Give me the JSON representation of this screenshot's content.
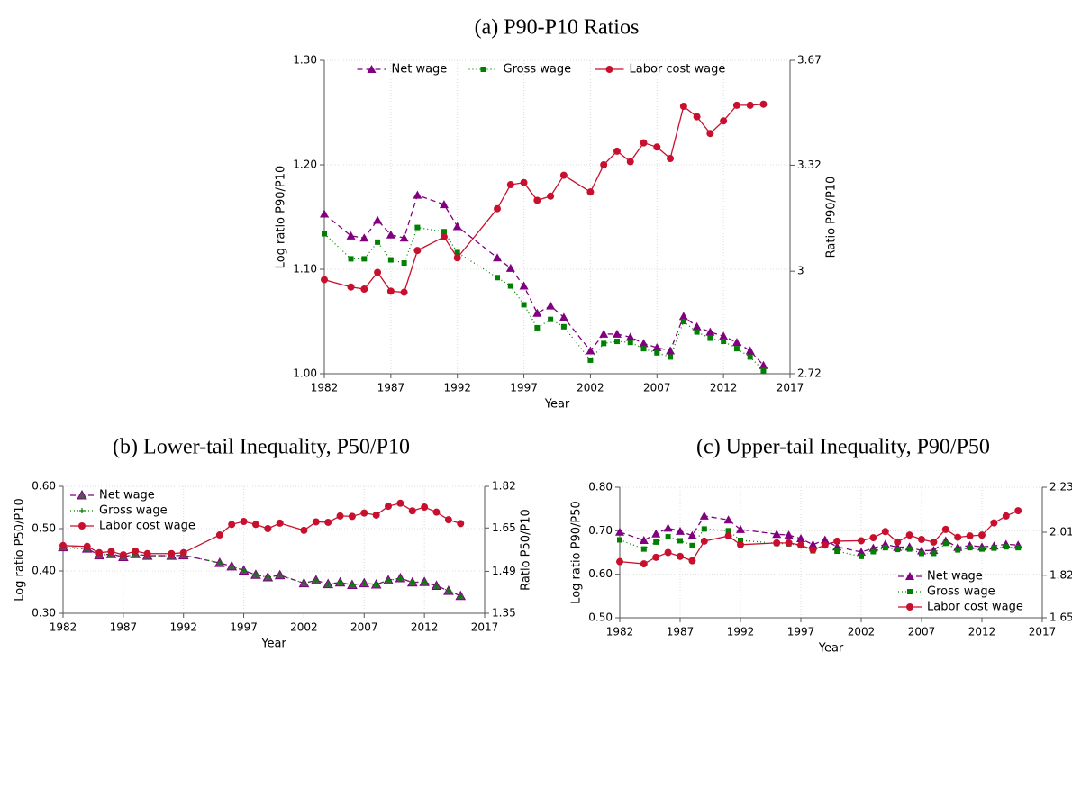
{
  "chart_data": [
    {
      "type": "line",
      "title": "(a) P90-P10 Ratios",
      "xlabel": "Year",
      "ylabel": "Log ratio P90/P10",
      "y2label": "Ratio P90/P10",
      "x": [
        1982,
        1984,
        1985,
        1986,
        1987,
        1988,
        1989,
        1991,
        1992,
        1995,
        1996,
        1997,
        1998,
        1999,
        2000,
        2002,
        2003,
        2004,
        2005,
        2006,
        2007,
        2008,
        2009,
        2010,
        2011,
        2012,
        2013,
        2014,
        2015
      ],
      "xlim": [
        1982,
        2017
      ],
      "xticks": [
        1982,
        1987,
        1992,
        1997,
        2002,
        2007,
        2012,
        2017
      ],
      "ylim": [
        1.0,
        1.3
      ],
      "yticks": [
        {
          "value": 1.0,
          "label": "1.00"
        },
        {
          "value": 1.1,
          "label": "1.10"
        },
        {
          "value": 1.2,
          "label": "1.20"
        },
        {
          "value": 1.3,
          "label": "1.30"
        }
      ],
      "y2lim": [
        2.72,
        3.67
      ],
      "y2ticks": [
        2.72,
        3,
        3.32,
        3.67
      ],
      "y2scale": "log",
      "grid": true,
      "legend": "top",
      "series": [
        {
          "name": "Net wage",
          "color": "#800080",
          "marker": "triangle",
          "line_style": "dashed",
          "values": [
            1.153,
            1.132,
            1.13,
            1.147,
            1.133,
            1.13,
            1.171,
            1.162,
            1.141,
            1.111,
            1.101,
            1.084,
            1.058,
            1.065,
            1.054,
            1.022,
            1.038,
            1.038,
            1.035,
            1.029,
            1.025,
            1.022,
            1.055,
            1.045,
            1.04,
            1.036,
            1.03,
            1.022,
            1.008
          ]
        },
        {
          "name": "Gross wage",
          "color": "#008000",
          "marker": "square",
          "line_style": "dotted",
          "values": [
            1.134,
            1.11,
            1.11,
            1.126,
            1.109,
            1.106,
            1.14,
            1.136,
            1.116,
            1.092,
            1.084,
            1.066,
            1.044,
            1.052,
            1.045,
            1.013,
            1.029,
            1.031,
            1.03,
            1.024,
            1.02,
            1.016,
            1.05,
            1.04,
            1.034,
            1.031,
            1.024,
            1.016,
            1.003
          ]
        },
        {
          "name": "Labor cost wage",
          "color": "#c8102e",
          "marker": "circle",
          "line_style": "solid",
          "values": [
            1.09,
            1.083,
            1.081,
            1.097,
            1.079,
            1.078,
            1.118,
            1.131,
            1.111,
            1.158,
            1.181,
            1.183,
            1.166,
            1.17,
            1.19,
            1.174,
            1.2,
            1.213,
            1.203,
            1.221,
            1.217,
            1.206,
            1.256,
            1.246,
            1.23,
            1.242,
            1.257,
            1.257,
            1.258
          ]
        }
      ]
    },
    {
      "type": "line",
      "title": "(b) Lower-tail Inequality, P50/P10",
      "xlabel": "Year",
      "ylabel": "Log ratio P50/P10",
      "y2label": "Ratio P50/P10",
      "x": [
        1982,
        1984,
        1985,
        1986,
        1987,
        1988,
        1989,
        1991,
        1992,
        1995,
        1996,
        1997,
        1998,
        1999,
        2000,
        2002,
        2003,
        2004,
        2005,
        2006,
        2007,
        2008,
        2009,
        2010,
        2011,
        2012,
        2013,
        2014,
        2015
      ],
      "xlim": [
        1982,
        2017
      ],
      "xticks": [
        1982,
        1987,
        1992,
        1997,
        2002,
        2007,
        2012,
        2017
      ],
      "ylim": [
        0.3,
        0.6
      ],
      "yticks": [
        {
          "value": 0.3,
          "label": "0.30"
        },
        {
          "value": 0.4,
          "label": "0.40"
        },
        {
          "value": 0.5,
          "label": "0.50"
        },
        {
          "value": 0.6,
          "label": "0.60"
        }
      ],
      "y2lim": [
        1.35,
        1.82
      ],
      "y2ticks": [
        1.35,
        1.49,
        1.65,
        1.82
      ],
      "y2scale": "log",
      "grid": true,
      "legend": "top-left",
      "series": [
        {
          "name": "Net wage",
          "color": "#800080",
          "marker": "hollow-triangle",
          "line_style": "dashed",
          "values": [
            0.456,
            0.453,
            0.437,
            0.44,
            0.433,
            0.44,
            0.436,
            0.436,
            0.437,
            0.419,
            0.411,
            0.401,
            0.391,
            0.385,
            0.39,
            0.371,
            0.378,
            0.369,
            0.373,
            0.367,
            0.371,
            0.368,
            0.378,
            0.383,
            0.373,
            0.374,
            0.365,
            0.353,
            0.341
          ]
        },
        {
          "name": "Gross wage",
          "color": "#008000",
          "marker": "plus",
          "line_style": "dotted",
          "values": [
            0.455,
            0.452,
            0.437,
            0.44,
            0.433,
            0.439,
            0.436,
            0.436,
            0.437,
            0.419,
            0.411,
            0.401,
            0.391,
            0.385,
            0.39,
            0.371,
            0.377,
            0.369,
            0.373,
            0.367,
            0.371,
            0.368,
            0.378,
            0.382,
            0.373,
            0.374,
            0.365,
            0.353,
            0.341
          ]
        },
        {
          "name": "Labor cost wage",
          "color": "#c8102e",
          "marker": "circle",
          "line_style": "solid",
          "values": [
            0.46,
            0.458,
            0.443,
            0.446,
            0.438,
            0.447,
            0.441,
            0.441,
            0.443,
            0.485,
            0.51,
            0.517,
            0.51,
            0.5,
            0.513,
            0.496,
            0.516,
            0.515,
            0.53,
            0.529,
            0.537,
            0.532,
            0.553,
            0.56,
            0.542,
            0.551,
            0.539,
            0.521,
            0.512
          ]
        }
      ]
    },
    {
      "type": "line",
      "title": "(c) Upper-tail Inequality, P90/P50",
      "xlabel": "Year",
      "ylabel": "Log ratio P90/P50",
      "y2label": "Ratio P90/P50",
      "x": [
        1982,
        1984,
        1985,
        1986,
        1987,
        1988,
        1989,
        1991,
        1992,
        1995,
        1996,
        1997,
        1998,
        1999,
        2000,
        2002,
        2003,
        2004,
        2005,
        2006,
        2007,
        2008,
        2009,
        2010,
        2011,
        2012,
        2013,
        2014,
        2015
      ],
      "xlim": [
        1982,
        2017
      ],
      "xticks": [
        1982,
        1987,
        1992,
        1997,
        2002,
        2007,
        2012,
        2017
      ],
      "ylim": [
        0.5,
        0.8
      ],
      "yticks": [
        {
          "value": 0.5,
          "label": "0.50"
        },
        {
          "value": 0.6,
          "label": "0.60"
        },
        {
          "value": 0.7,
          "label": "0.70"
        },
        {
          "value": 0.8,
          "label": "0.80"
        }
      ],
      "y2lim": [
        1.65,
        2.23
      ],
      "y2ticks": [
        1.65,
        1.82,
        2.01,
        2.23
      ],
      "y2scale": "log",
      "grid": true,
      "legend": "bottom-right",
      "series": [
        {
          "name": "Net wage",
          "color": "#800080",
          "marker": "triangle",
          "line_style": "dashed",
          "values": [
            0.697,
            0.678,
            0.693,
            0.706,
            0.699,
            0.689,
            0.734,
            0.725,
            0.703,
            0.692,
            0.69,
            0.682,
            0.668,
            0.679,
            0.663,
            0.651,
            0.66,
            0.669,
            0.662,
            0.663,
            0.654,
            0.655,
            0.677,
            0.662,
            0.666,
            0.663,
            0.665,
            0.669,
            0.667
          ]
        },
        {
          "name": "Gross wage",
          "color": "#008000",
          "marker": "square",
          "line_style": "dotted",
          "values": [
            0.679,
            0.658,
            0.674,
            0.686,
            0.677,
            0.666,
            0.704,
            0.7,
            0.678,
            0.671,
            0.67,
            0.666,
            0.654,
            0.666,
            0.653,
            0.641,
            0.652,
            0.661,
            0.657,
            0.658,
            0.648,
            0.648,
            0.671,
            0.656,
            0.661,
            0.658,
            0.66,
            0.663,
            0.661
          ]
        },
        {
          "name": "Labor cost wage",
          "color": "#c8102e",
          "marker": "circle",
          "line_style": "solid",
          "values": [
            0.629,
            0.624,
            0.639,
            0.65,
            0.641,
            0.631,
            0.676,
            0.688,
            0.668,
            0.672,
            0.672,
            0.667,
            0.656,
            0.667,
            0.676,
            0.677,
            0.684,
            0.698,
            0.674,
            0.69,
            0.68,
            0.674,
            0.703,
            0.685,
            0.688,
            0.69,
            0.718,
            0.734,
            0.746
          ]
        }
      ]
    }
  ]
}
